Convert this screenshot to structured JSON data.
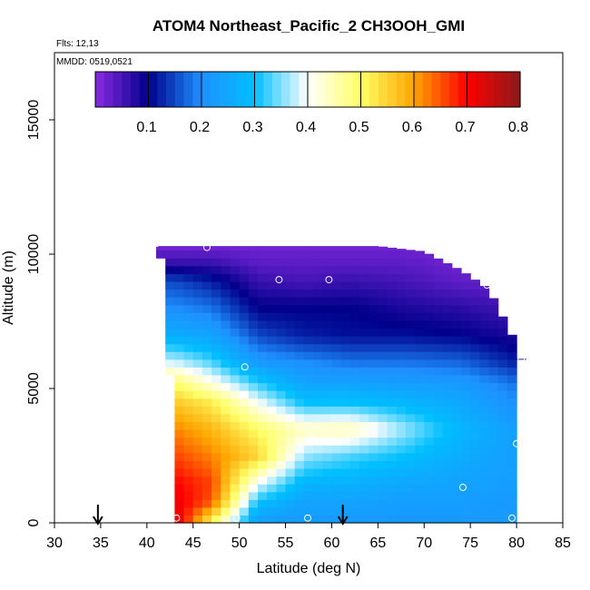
{
  "chart_data": {
    "type": "heatmap",
    "title": "ATOM4 Northeast_Pacific_2 CH3OOH_GMI",
    "flights": "Flts: 12,13",
    "dates": "MMDD: 0519,0521",
    "xlabel": "Latitude (deg N)",
    "ylabel": "Altitude (m)",
    "xlim": [
      30,
      85
    ],
    "ylim": [
      0,
      17500
    ],
    "x_ticks": [
      "30",
      "35",
      "40",
      "45",
      "50",
      "55",
      "60",
      "65",
      "70",
      "75",
      "80",
      "85"
    ],
    "y_ticks": [
      "0",
      "5000",
      "10000",
      "15000"
    ],
    "colorbar": {
      "range": [
        0,
        0.8
      ],
      "ticks": [
        "0.1",
        "0.2",
        "0.3",
        "0.4",
        "0.5",
        "0.6",
        "0.7",
        "0.8"
      ],
      "colors": [
        "#8a2be2",
        "#00008b",
        "#1e90ff",
        "#00bfff",
        "#ffffff",
        "#ffff66",
        "#ffa500",
        "#ff0000",
        "#8b1a1a"
      ]
    },
    "arrows_latitude": [
      34.7,
      61.2
    ],
    "curtain": {
      "columns": [
        {
          "lat": 41.5,
          "bottom": 10000,
          "top": 10300
        },
        {
          "lat": 42.5,
          "bottom": 5500,
          "top": 10300
        },
        {
          "lat": 43.5,
          "bottom": 0,
          "top": 10300
        },
        {
          "lat": 45,
          "bottom": 0,
          "top": 10300
        },
        {
          "lat": 50,
          "bottom": 0,
          "top": 10300
        },
        {
          "lat": 55,
          "bottom": 0,
          "top": 10300
        },
        {
          "lat": 60,
          "bottom": 0,
          "top": 10300
        },
        {
          "lat": 65,
          "bottom": 0,
          "top": 10300
        },
        {
          "lat": 70,
          "bottom": 0,
          "top": 10100
        },
        {
          "lat": 74,
          "bottom": 0,
          "top": 9400
        },
        {
          "lat": 77,
          "bottom": 0,
          "top": 8700
        },
        {
          "lat": 79.5,
          "bottom": 0,
          "top": 7000
        },
        {
          "lat": 80.5,
          "bottom": 6000,
          "top": 6100
        }
      ],
      "profiles": [
        {
          "lat": 43,
          "points": [
            [
              0,
              0.75
            ],
            [
              800,
              0.72
            ],
            [
              1500,
              0.7
            ],
            [
              2500,
              0.66
            ],
            [
              3500,
              0.62
            ],
            [
              4500,
              0.56
            ],
            [
              5200,
              0.5
            ],
            [
              6000,
              0.38
            ],
            [
              7000,
              0.26
            ],
            [
              8000,
              0.2
            ],
            [
              9000,
              0.15
            ],
            [
              9800,
              0.05
            ],
            [
              10300,
              0.02
            ]
          ]
        },
        {
          "lat": 47,
          "points": [
            [
              0,
              0.5
            ],
            [
              800,
              0.65
            ],
            [
              1500,
              0.66
            ],
            [
              2500,
              0.62
            ],
            [
              3500,
              0.58
            ],
            [
              4500,
              0.52
            ],
            [
              5200,
              0.42
            ],
            [
              6000,
              0.33
            ],
            [
              7000,
              0.24
            ],
            [
              8000,
              0.18
            ],
            [
              9000,
              0.12
            ],
            [
              9800,
              0.05
            ],
            [
              10300,
              0.02
            ]
          ]
        },
        {
          "lat": 52,
          "points": [
            [
              0,
              0.22
            ],
            [
              800,
              0.3
            ],
            [
              1500,
              0.4
            ],
            [
              2500,
              0.55
            ],
            [
              3500,
              0.5
            ],
            [
              4500,
              0.4
            ],
            [
              5200,
              0.32
            ],
            [
              6000,
              0.22
            ],
            [
              7000,
              0.15
            ],
            [
              8000,
              0.1
            ],
            [
              9000,
              0.06
            ],
            [
              9800,
              0.03
            ],
            [
              10300,
              0.02
            ]
          ]
        },
        {
          "lat": 57,
          "points": [
            [
              0,
              0.22
            ],
            [
              800,
              0.24
            ],
            [
              1500,
              0.28
            ],
            [
              2500,
              0.36
            ],
            [
              3500,
              0.44
            ],
            [
              4500,
              0.3
            ],
            [
              5200,
              0.24
            ],
            [
              6000,
              0.2
            ],
            [
              7000,
              0.12
            ],
            [
              8000,
              0.1
            ],
            [
              9000,
              0.05
            ],
            [
              9800,
              0.03
            ],
            [
              10300,
              0.02
            ]
          ]
        },
        {
          "lat": 62,
          "points": [
            [
              0,
              0.22
            ],
            [
              800,
              0.24
            ],
            [
              1500,
              0.27
            ],
            [
              2500,
              0.33
            ],
            [
              3500,
              0.45
            ],
            [
              4500,
              0.3
            ],
            [
              5200,
              0.24
            ],
            [
              6000,
              0.18
            ],
            [
              7000,
              0.11
            ],
            [
              8000,
              0.1
            ],
            [
              9000,
              0.06
            ],
            [
              9800,
              0.03
            ],
            [
              10300,
              0.02
            ]
          ]
        },
        {
          "lat": 68,
          "points": [
            [
              0,
              0.22
            ],
            [
              800,
              0.23
            ],
            [
              1500,
              0.25
            ],
            [
              2500,
              0.3
            ],
            [
              3500,
              0.36
            ],
            [
              4500,
              0.28
            ],
            [
              5200,
              0.23
            ],
            [
              6000,
              0.18
            ],
            [
              7000,
              0.11
            ],
            [
              8000,
              0.08
            ],
            [
              9000,
              0.05
            ],
            [
              9800,
              0.03
            ],
            [
              10300,
              0.02
            ]
          ]
        },
        {
          "lat": 74,
          "points": [
            [
              0,
              0.22
            ],
            [
              800,
              0.23
            ],
            [
              1500,
              0.24
            ],
            [
              2500,
              0.26
            ],
            [
              3500,
              0.28
            ],
            [
              4500,
              0.25
            ],
            [
              5200,
              0.22
            ],
            [
              6000,
              0.17
            ],
            [
              7000,
              0.1
            ],
            [
              8000,
              0.07
            ],
            [
              9000,
              0.03
            ],
            [
              9800,
              0.02
            ],
            [
              10300,
              0.02
            ]
          ]
        },
        {
          "lat": 80,
          "points": [
            [
              0,
              0.22
            ],
            [
              800,
              0.22
            ],
            [
              1500,
              0.23
            ],
            [
              2500,
              0.23
            ],
            [
              3500,
              0.23
            ],
            [
              4500,
              0.2
            ],
            [
              5200,
              0.18
            ],
            [
              6000,
              0.12
            ],
            [
              7000,
              0.08
            ],
            [
              8000,
              0.05
            ],
            [
              9000,
              0.03
            ],
            [
              9800,
              0.02
            ],
            [
              10300,
              0.02
            ]
          ]
        }
      ]
    },
    "observations": [
      {
        "lat": 41.0,
        "alt": 10400
      },
      {
        "lat": 46.5,
        "alt": 10250
      },
      {
        "lat": 69.8,
        "alt": 10700
      },
      {
        "lat": 54.3,
        "alt": 9050
      },
      {
        "lat": 59.7,
        "alt": 9050
      },
      {
        "lat": 76.8,
        "alt": 8850
      },
      {
        "lat": 80.5,
        "alt": 6100
      },
      {
        "lat": 50.6,
        "alt": 5800
      },
      {
        "lat": 41.5,
        "alt": 5350
      },
      {
        "lat": 57.9,
        "alt": 3100
      },
      {
        "lat": 62.0,
        "alt": 3200
      },
      {
        "lat": 80.0,
        "alt": 2950
      },
      {
        "lat": 74.2,
        "alt": 1320
      },
      {
        "lat": 43.2,
        "alt": 180
      },
      {
        "lat": 49.7,
        "alt": 180
      },
      {
        "lat": 57.4,
        "alt": 180
      },
      {
        "lat": 79.5,
        "alt": 180
      }
    ]
  }
}
